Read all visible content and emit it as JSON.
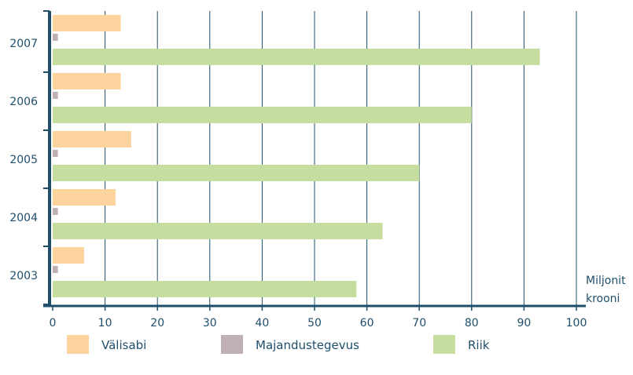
{
  "chart_data": {
    "type": "bar",
    "orientation": "horizontal",
    "categories": [
      "2007",
      "2006",
      "2005",
      "2004",
      "2003"
    ],
    "series": [
      {
        "name": "Välisabi",
        "color": "#fdd49e",
        "values": [
          13,
          13,
          15,
          12,
          6
        ]
      },
      {
        "name": "Majandustegevus",
        "color": "#c0b0b6",
        "values": [
          1,
          1,
          1,
          1,
          1
        ]
      },
      {
        "name": "Riik",
        "color": "#c5dea0",
        "values": [
          93,
          80,
          70,
          63,
          58
        ]
      }
    ],
    "xticks": [
      "0",
      "10",
      "20",
      "30",
      "40",
      "50",
      "60",
      "70",
      "80",
      "90",
      "100"
    ],
    "xlim": [
      0,
      100
    ],
    "unit_label": [
      "Miljonit",
      "krooni"
    ],
    "grid": "vertical",
    "legend_position": "bottom",
    "colors": {
      "axis": "#1f4e6b",
      "grid": "#1f4e6b"
    }
  }
}
